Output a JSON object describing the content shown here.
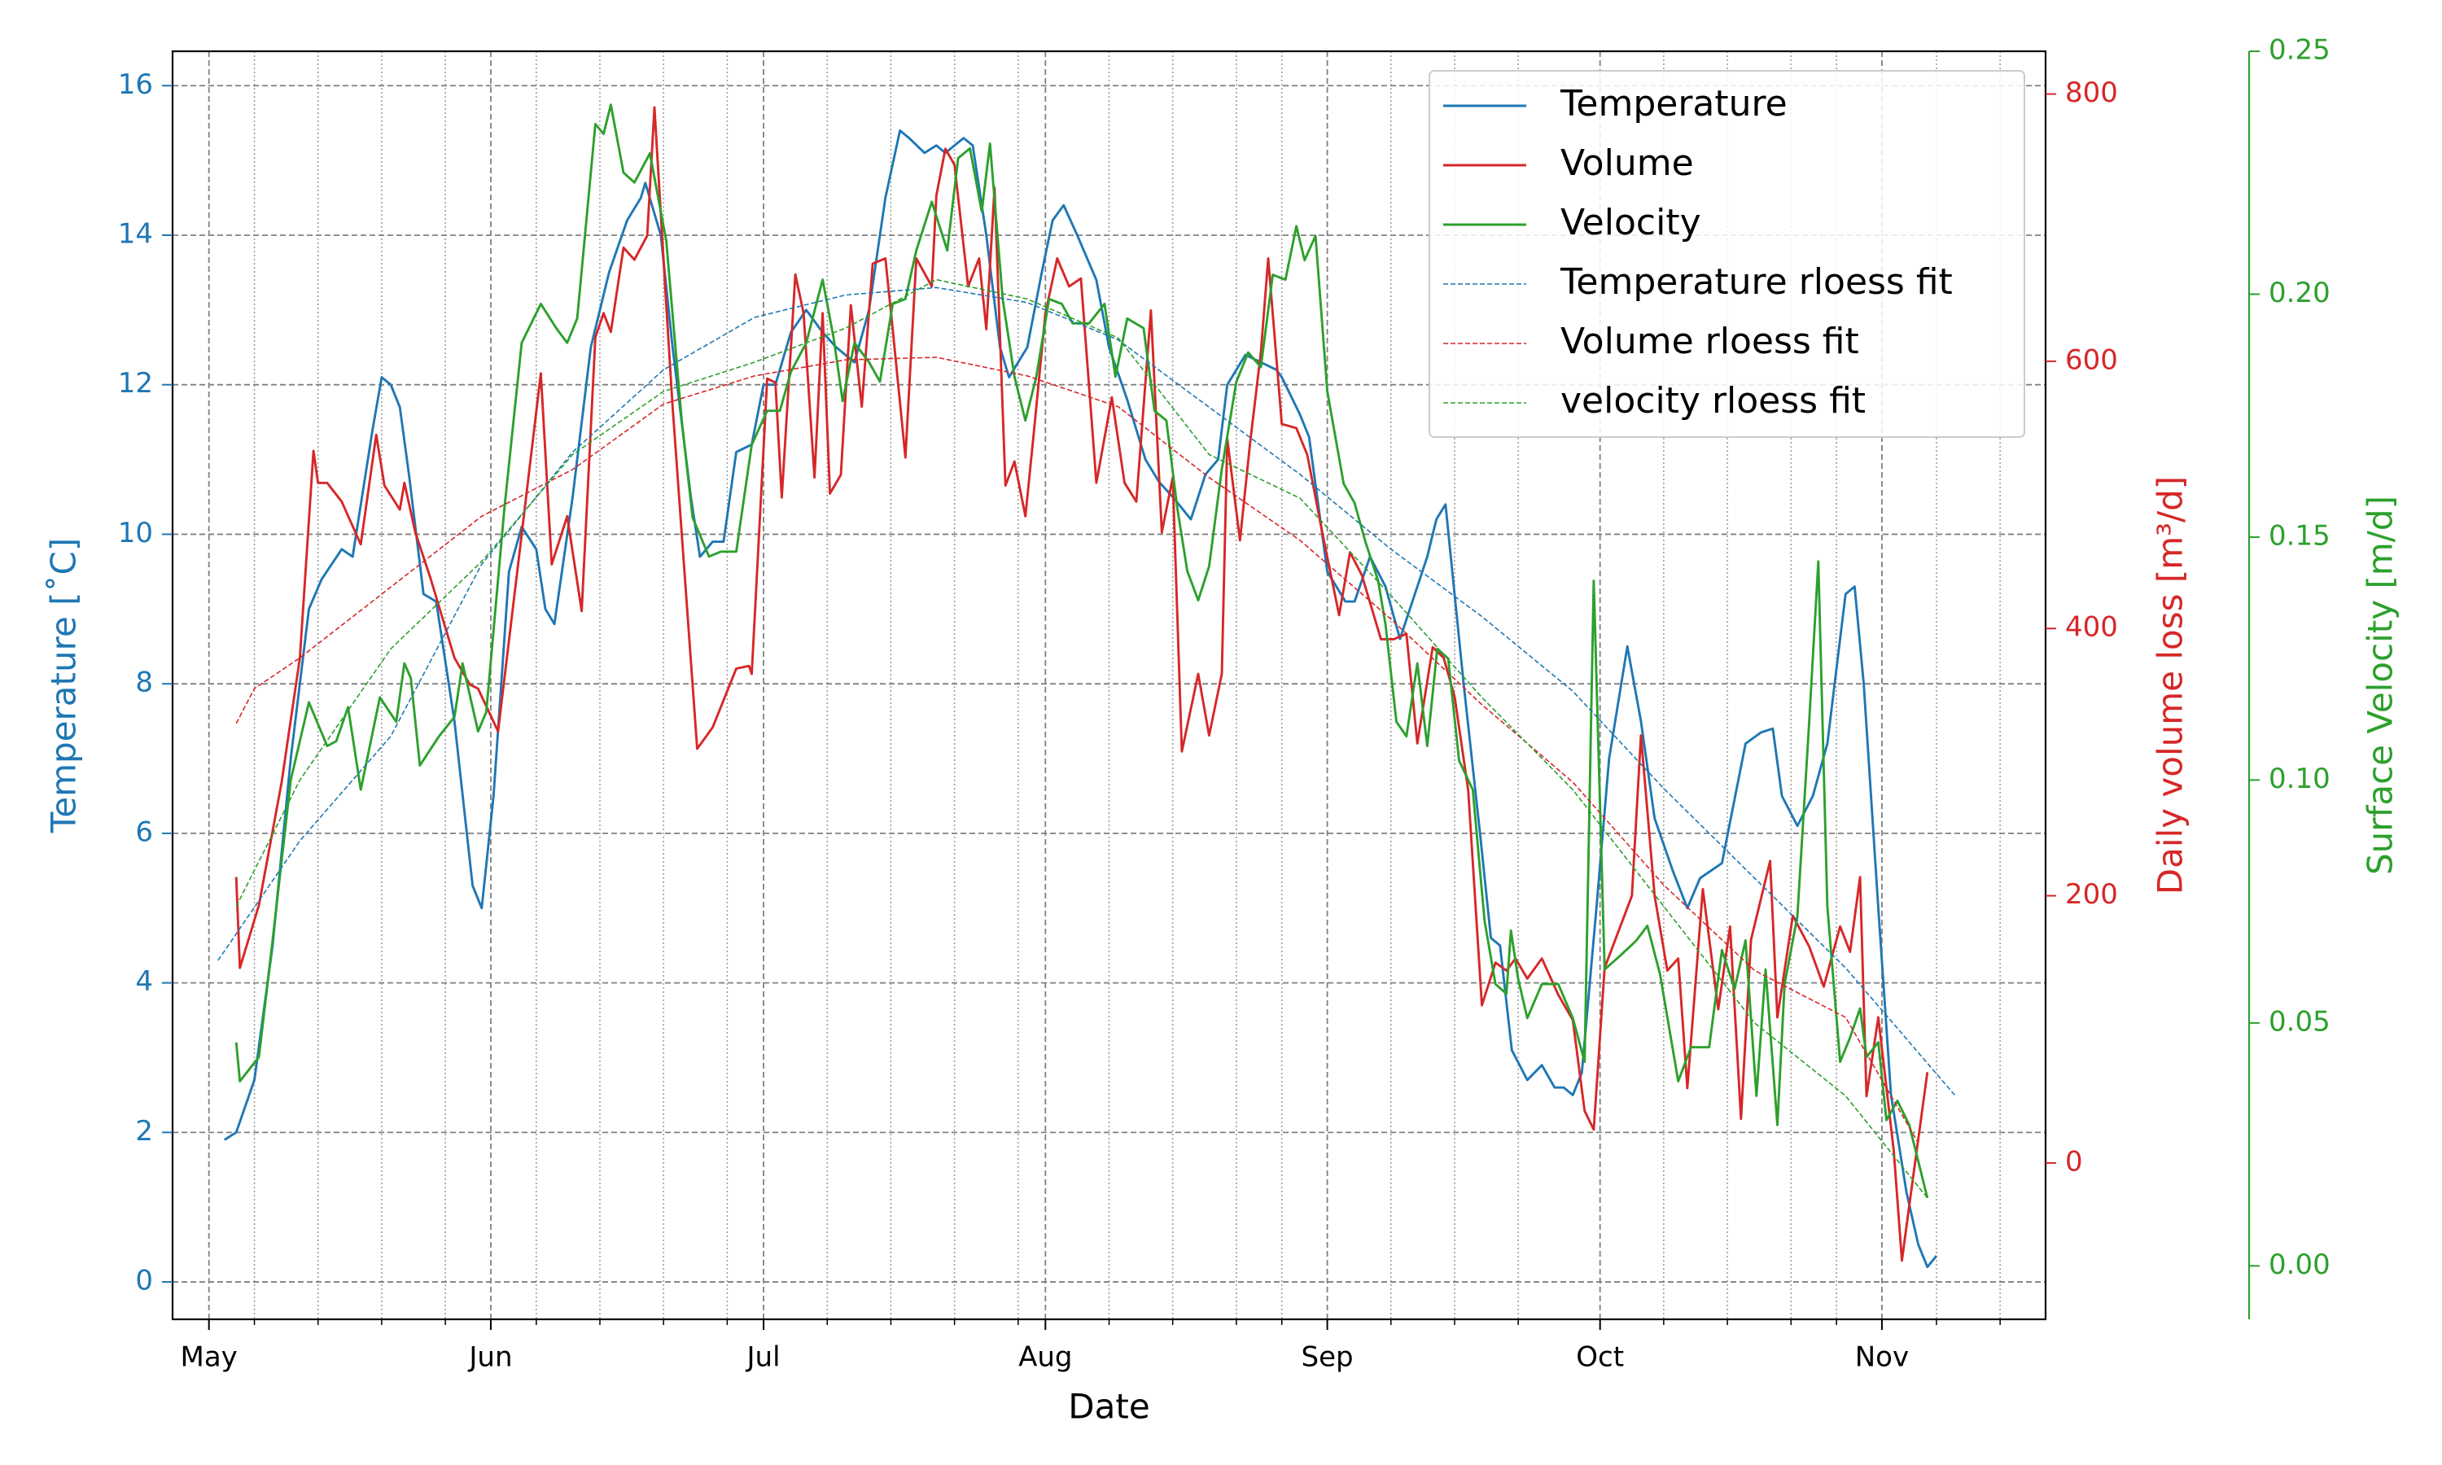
{
  "chart_data": {
    "type": "line",
    "xlabel": "Date",
    "ylabel": "Temperature [˚C]",
    "y2label": "Daily volume loss [m³/d]",
    "y3label": "Surface Velocity [m/d]",
    "xlim": [
      -4,
      202
    ],
    "xticks": [
      {
        "value": 0,
        "label": "May"
      },
      {
        "value": 31,
        "label": "Jun"
      },
      {
        "value": 61,
        "label": "Jul"
      },
      {
        "value": 92,
        "label": "Aug"
      },
      {
        "value": 123,
        "label": "Sep"
      },
      {
        "value": 153,
        "label": "Oct"
      },
      {
        "value": 184,
        "label": "Nov"
      }
    ],
    "xminor_ticks": [
      5,
      12,
      19,
      26,
      36,
      43,
      50,
      57,
      68,
      75,
      82,
      89,
      99,
      106,
      113,
      118,
      130,
      137,
      144,
      160,
      167,
      174,
      179,
      190,
      197
    ],
    "ylim": [
      -0.5,
      16.46
    ],
    "yticks": [
      0,
      2,
      4,
      6,
      8,
      10,
      12,
      14,
      16
    ],
    "y2lim": [
      -117,
      832
    ],
    "y2ticks": [
      0,
      200,
      400,
      600,
      800
    ],
    "y3lim": [
      -0.011,
      0.25
    ],
    "y3ticks": [
      {
        "value": 0,
        "label": "0.00"
      },
      0.05,
      {
        "value": 0.1,
        "label": "0.10"
      },
      0.15,
      {
        "value": 0.2,
        "label": "0.20"
      },
      0.25
    ],
    "grid": true,
    "legend": "upper right",
    "series": [
      {
        "name": "Temperature",
        "color": "#1f77b4",
        "axis": "y",
        "dashed": false,
        "x": [
          1.7,
          3,
          5,
          7,
          9,
          11,
          12.4,
          14.6,
          15.8,
          18,
          19,
          20,
          21,
          22,
          23.6,
          25,
          27,
          29,
          30,
          31.3,
          33,
          34.4,
          36,
          37,
          38,
          40,
          42,
          44,
          46,
          47.5,
          48,
          49.7,
          51,
          53,
          54,
          55.4,
          56.6,
          58,
          59.7,
          61,
          62.3,
          64,
          65.7,
          67.5,
          69,
          71,
          72.6,
          74.4,
          76,
          77,
          78.7,
          80,
          81,
          83,
          84,
          85.5,
          87,
          88,
          90,
          91.6,
          92.8,
          94,
          95.5,
          97.6,
          99,
          101,
          103,
          104.5,
          106,
          108,
          109.6,
          111,
          112,
          114,
          115.7,
          117.4,
          118,
          120,
          121,
          123,
          125,
          126,
          127.7,
          129.4,
          131,
          132.9,
          134,
          135,
          136,
          138,
          139.8,
          141,
          142,
          143.3,
          145,
          146.6,
          148,
          149,
          150,
          151,
          152.6,
          154,
          156,
          157.5,
          159,
          161,
          162.6,
          164,
          166.4,
          169,
          170.7,
          172,
          173,
          174.7,
          176.4,
          178,
          180,
          181,
          182,
          183.6,
          185,
          186.7,
          188,
          189,
          190
        ],
        "values": [
          1.9,
          2.0,
          2.7,
          4.5,
          7,
          9.0,
          9.4,
          9.8,
          9.7,
          11.4,
          12.1,
          12.0,
          11.7,
          10.8,
          9.2,
          9.1,
          7.5,
          5.3,
          5.0,
          6.5,
          9.5,
          10.1,
          9.8,
          9.0,
          8.8,
          10.5,
          12.5,
          13.5,
          14.2,
          14.5,
          14.7,
          14.0,
          12.5,
          10.5,
          9.7,
          9.9,
          9.9,
          11.1,
          11.2,
          12.0,
          12.0,
          12.7,
          13.0,
          12.7,
          12.5,
          12.3,
          13.0,
          14.5,
          15.4,
          15.3,
          15.1,
          15.2,
          15.1,
          15.3,
          15.2,
          14.0,
          12.5,
          12.1,
          12.5,
          13.5,
          14.2,
          14.4,
          14.0,
          13.4,
          12.5,
          11.8,
          11.0,
          10.7,
          10.5,
          10.2,
          10.8,
          11.0,
          12.0,
          12.4,
          12.3,
          12.2,
          12.1,
          11.6,
          11.3,
          9.5,
          9.1,
          9.1,
          9.7,
          9.3,
          8.6,
          9.3,
          9.7,
          10.2,
          10.4,
          8.0,
          6.0,
          4.6,
          4.5,
          3.1,
          2.7,
          2.9,
          2.6,
          2.6,
          2.5,
          2.8,
          5.0,
          7.0,
          8.5,
          7.5,
          6.2,
          5.5,
          5.0,
          5.4,
          5.6,
          7.2,
          7.35,
          7.4,
          6.5,
          6.1,
          6.5,
          7.2,
          9.2,
          9.3,
          8.0,
          5.0,
          2.5,
          1.2,
          0.5,
          0.2,
          0.35
        ]
      },
      {
        "name": "Volume",
        "color": "#d62728",
        "axis": "y2",
        "dashed": false,
        "x": [
          3,
          3.4,
          5.5,
          8,
          10,
          11.5,
          12,
          13,
          14.6,
          16.7,
          18.4,
          19.3,
          21,
          21.5,
          22.7,
          24.4,
          27,
          28.7,
          29.6,
          31.8,
          34,
          36.5,
          37.7,
          39.4,
          41,
          42.5,
          43.4,
          44.2,
          45.6,
          46.8,
          48.2,
          49,
          50.3,
          51,
          53.7,
          55.4,
          58,
          59.4,
          59.7,
          61.4,
          62.3,
          63,
          64.5,
          65.4,
          66.6,
          67.5,
          68.3,
          69.5,
          70.6,
          71.8,
          73,
          74.4,
          75.2,
          76.6,
          77.8,
          79.5,
          80,
          81,
          82,
          83.5,
          84.7,
          85.5,
          86.4,
          87.6,
          88.6,
          89.8,
          90.7,
          92,
          93.3,
          94.6,
          95.9,
          97.6,
          99.3,
          100.7,
          102,
          103.6,
          104.8,
          106,
          107,
          108.8,
          110,
          111.4,
          112,
          113.4,
          114.5,
          115.7,
          116.5,
          118,
          119.6,
          120.8,
          122.5,
          124.3,
          125.5,
          126.8,
          128.9,
          130.3,
          131.7,
          132.9,
          134.6,
          135.8,
          137,
          138.5,
          140,
          141.5,
          142.7,
          143.7,
          145,
          146.6,
          148.4,
          150,
          151.3,
          152.3,
          153.5,
          156.5,
          157.5,
          159,
          160.4,
          161.6,
          162.6,
          164.3,
          166,
          167.3,
          168.5,
          169.6,
          171.7,
          172.5,
          174.2,
          176,
          177.6,
          179.4,
          180.5,
          181.6,
          182.3,
          183.6,
          185.3,
          186.2,
          187,
          189
        ],
        "values": [
          214,
          146,
          193,
          285,
          378,
          533,
          509,
          509,
          495,
          463,
          545,
          507,
          489,
          509,
          472,
          437,
          378,
          358,
          355,
          323,
          448,
          591,
          448,
          484,
          413,
          618,
          636,
          622,
          685,
          676,
          694,
          790,
          642,
          566,
          310,
          326,
          370,
          372,
          366,
          587,
          584,
          498,
          665,
          636,
          513,
          636,
          501,
          515,
          642,
          566,
          673,
          677,
          624,
          528,
          677,
          656,
          724,
          759,
          747,
          656,
          677,
          624,
          730,
          507,
          525,
          484,
          545,
          636,
          677,
          656,
          662,
          509,
          573,
          509,
          495,
          638,
          472,
          513,
          308,
          366,
          320,
          366,
          542,
          466,
          538,
          607,
          677,
          553,
          550,
          530,
          470,
          410,
          457,
          440,
          392,
          392,
          396,
          314,
          386,
          378,
          349,
          279,
          118,
          150,
          144,
          153,
          138,
          153,
          126,
          107,
          39,
          25,
          146,
          200,
          320,
          200,
          144,
          153,
          56,
          205,
          115,
          177,
          33,
          167,
          226,
          109,
          185,
          162,
          132,
          177,
          158,
          214,
          50,
          109,
          9,
          -73,
          -32,
          68
        ]
      },
      {
        "name": "Velocity",
        "color": "#2ca02c",
        "axis": "y3",
        "dashed": false,
        "x": [
          3,
          3.4,
          5.5,
          7,
          9,
          11,
          13,
          14,
          15.3,
          16.7,
          18.8,
          20.6,
          21.5,
          22.2,
          23.2,
          25.3,
          27,
          27.9,
          29.6,
          30.5,
          32.5,
          34.4,
          36.5,
          38.2,
          39.4,
          40.5,
          42.5,
          43.4,
          44.2,
          45.6,
          46.8,
          48.5,
          50.3,
          52,
          53.2,
          55,
          56.3,
          58,
          59.7,
          61.4,
          62.8,
          64,
          65.7,
          67.5,
          68.7,
          69.7,
          71,
          72.6,
          73.8,
          75.2,
          76.6,
          77.8,
          79.5,
          81.2,
          82.4,
          83.7,
          85,
          85.9,
          87.3,
          88.6,
          89.8,
          91,
          92.4,
          93.8,
          95,
          96.8,
          98.5,
          99.7,
          101,
          102.8,
          104,
          105.3,
          106.5,
          107.6,
          108.8,
          110,
          111.4,
          113,
          114.3,
          115.7,
          117,
          118.4,
          119.6,
          120.5,
          121.7,
          123,
          124.8,
          126,
          127.2,
          128.6,
          129.4,
          130.6,
          131.7,
          132.9,
          134,
          135.1,
          136.3,
          137.5,
          139,
          140.3,
          141.5,
          142.7,
          143.2,
          144,
          145,
          146.6,
          148.4,
          150,
          151.3,
          152.3,
          153.5,
          155.3,
          157,
          158.2,
          159.6,
          161.6,
          163,
          165,
          166.4,
          167.8,
          169,
          170.2,
          171.2,
          172.5,
          173.3,
          174.7,
          176,
          177,
          178,
          179.4,
          180.5,
          181.6,
          182.3,
          183.6,
          184.5,
          185.7,
          187,
          189
        ],
        "values": [
          0.046,
          0.038,
          0.043,
          0.067,
          0.1,
          0.116,
          0.107,
          0.108,
          0.115,
          0.098,
          0.117,
          0.112,
          0.124,
          0.121,
          0.103,
          0.109,
          0.113,
          0.124,
          0.11,
          0.114,
          0.156,
          0.19,
          0.198,
          0.193,
          0.19,
          0.195,
          0.235,
          0.233,
          0.239,
          0.225,
          0.223,
          0.229,
          0.211,
          0.174,
          0.154,
          0.146,
          0.147,
          0.147,
          0.169,
          0.176,
          0.176,
          0.184,
          0.19,
          0.203,
          0.191,
          0.178,
          0.19,
          0.186,
          0.182,
          0.198,
          0.199,
          0.209,
          0.219,
          0.209,
          0.228,
          0.23,
          0.217,
          0.231,
          0.199,
          0.183,
          0.174,
          0.183,
          0.199,
          0.198,
          0.194,
          0.194,
          0.198,
          0.183,
          0.195,
          0.193,
          0.176,
          0.174,
          0.156,
          0.143,
          0.137,
          0.144,
          0.164,
          0.182,
          0.188,
          0.185,
          0.204,
          0.203,
          0.214,
          0.207,
          0.212,
          0.18,
          0.161,
          0.157,
          0.149,
          0.141,
          0.132,
          0.112,
          0.109,
          0.124,
          0.107,
          0.127,
          0.125,
          0.104,
          0.098,
          0.071,
          0.058,
          0.056,
          0.069,
          0.059,
          0.051,
          0.058,
          0.058,
          0.051,
          0.042,
          0.141,
          0.061,
          0.064,
          0.067,
          0.07,
          0.06,
          0.038,
          0.045,
          0.045,
          0.065,
          0.057,
          0.067,
          0.035,
          0.061,
          0.029,
          0.058,
          0.072,
          0.112,
          0.145,
          0.074,
          0.042,
          0.047,
          0.053,
          0.043,
          0.046,
          0.03,
          0.034,
          0.029,
          0.014
        ]
      },
      {
        "name": "Temperature rloess fit",
        "color": "#1f77b4",
        "axis": "y",
        "dashed": true,
        "x": [
          1,
          10,
          20,
          30,
          40,
          50,
          60,
          70,
          80,
          90,
          100,
          110,
          120,
          130,
          140,
          150,
          160,
          170,
          180,
          192
        ],
        "values": [
          4.3,
          5.9,
          7.3,
          9.6,
          11.1,
          12.2,
          12.9,
          13.2,
          13.3,
          13.1,
          12.6,
          11.7,
          10.8,
          9.8,
          8.9,
          7.9,
          6.6,
          5.4,
          4.2,
          2.5
        ]
      },
      {
        "name": "Volume rloess fit",
        "color": "#d62728",
        "axis": "y2",
        "dashed": true,
        "x": [
          3,
          5,
          10,
          20,
          30,
          40,
          50,
          60,
          70,
          80,
          90,
          100,
          110,
          120,
          130,
          140,
          150,
          160,
          170,
          180,
          188
        ],
        "values": [
          329,
          355,
          378,
          431,
          484,
          519,
          568,
          589,
          601,
          603,
          589,
          566,
          513,
          466,
          407,
          343,
          285,
          208,
          144,
          109,
          15
        ]
      },
      {
        "name": "velocity rloess fit",
        "color": "#2ca02c",
        "axis": "y3",
        "dashed": true,
        "x": [
          3,
          10,
          20,
          30,
          40,
          50,
          60,
          70,
          80,
          90,
          100,
          110,
          120,
          130,
          140,
          150,
          160,
          170,
          180,
          189
        ],
        "values": [
          0.074,
          0.1,
          0.127,
          0.145,
          0.167,
          0.18,
          0.186,
          0.193,
          0.203,
          0.199,
          0.191,
          0.167,
          0.158,
          0.138,
          0.117,
          0.098,
          0.074,
          0.05,
          0.035,
          0.014
        ]
      }
    ]
  }
}
